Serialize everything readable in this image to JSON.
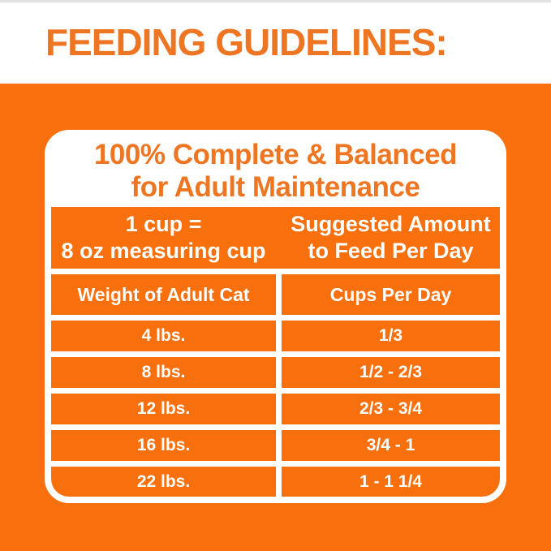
{
  "heading": "FEEDING GUIDELINES:",
  "card": {
    "title": {
      "line1": "100% Complete & Balanced",
      "line2": "for Adult Maintenance"
    },
    "table": {
      "header": {
        "cup_equiv_line1": "1 cup =",
        "cup_equiv_line2": "8 oz measuring cup",
        "suggested_line1": "Suggested Amount",
        "suggested_line2": "to Feed Per Day"
      },
      "columns": {
        "weight": "Weight of Adult Cat",
        "cups": "Cups Per Day"
      },
      "rows": [
        {
          "weight": "4 lbs.",
          "cups": "1/3"
        },
        {
          "weight": "8 lbs.",
          "cups": "1/2 - 2/3"
        },
        {
          "weight": "12 lbs.",
          "cups": "2/3 - 3/4"
        },
        {
          "weight": "16 lbs.",
          "cups": "3/4 - 1"
        },
        {
          "weight": "22 lbs.",
          "cups": "1 - 1 1/4"
        }
      ]
    }
  },
  "colors": {
    "orange_background": "#F8700D",
    "orange_text": "#EE7522",
    "cell_text": "#FFFFFF",
    "card_background": "#FFFFFF"
  }
}
